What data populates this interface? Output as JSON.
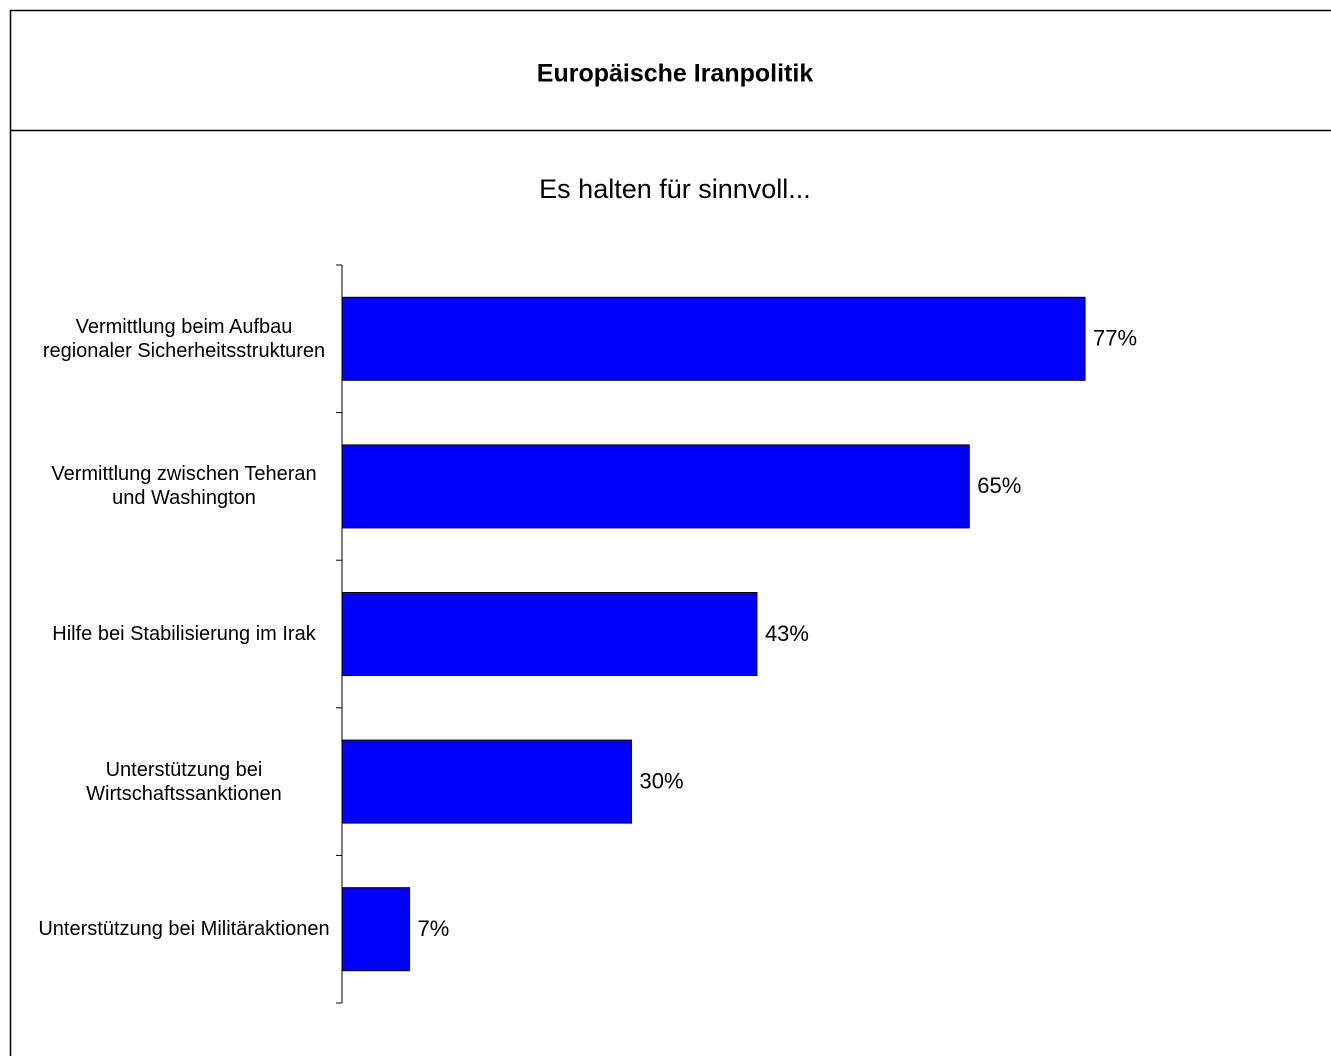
{
  "chart_data": {
    "type": "barh",
    "title": "Europäische Iranpolitik",
    "subtitle": "Es halten für sinnvoll...",
    "categories": [
      "Vermittlung beim Aufbau regionaler Sicherheitsstrukturen",
      "Vermittlung zwischen Teheran und Washington",
      "Hilfe bei Stabilisierung im Irak",
      "Unterstützung bei Wirtschaftssanktionen",
      "Unterstützung bei Militäraktionen"
    ],
    "values": [
      77,
      65,
      43,
      30,
      7
    ],
    "value_labels": [
      "77%",
      "65%",
      "43%",
      "30%",
      "7%"
    ],
    "color": "#0000ff",
    "xlim": [
      0,
      100
    ]
  }
}
